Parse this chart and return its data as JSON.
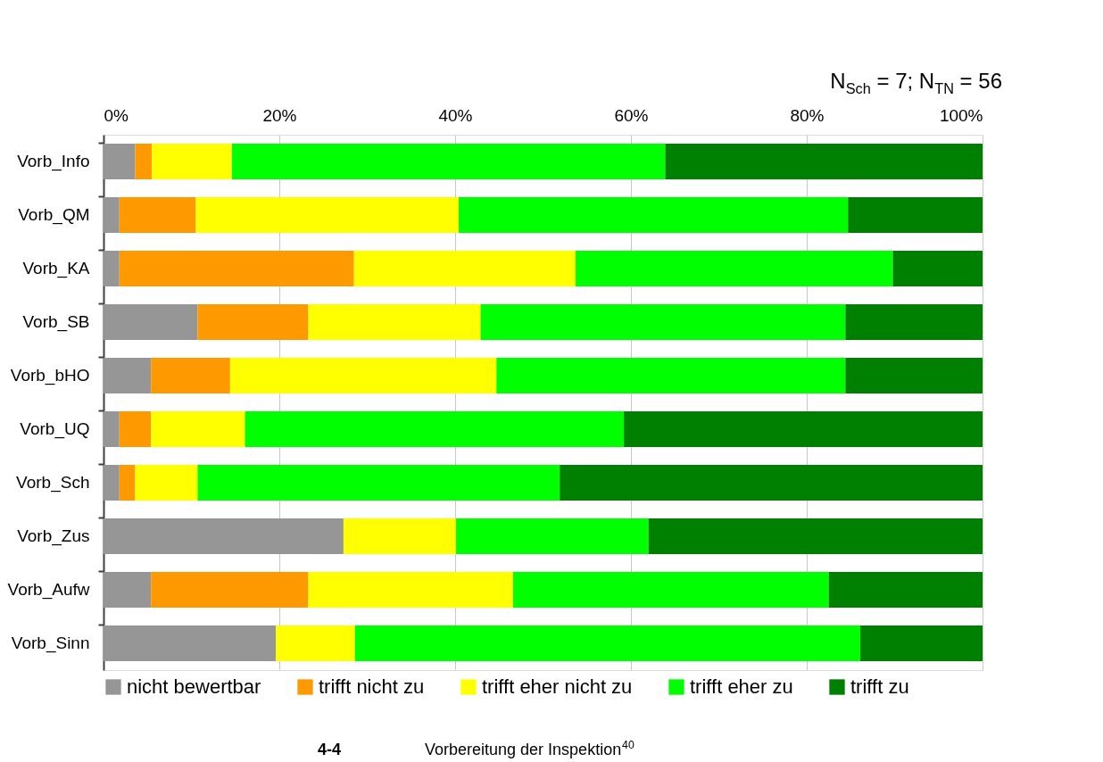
{
  "chart_data": {
    "type": "bar",
    "orientation": "horizontal",
    "stacked": true,
    "categories": [
      "Vorb_Info",
      "Vorb_QM",
      "Vorb_KA",
      "Vorb_SB",
      "Vorb_bHO",
      "Vorb_UQ",
      "Vorb_Sch",
      "Vorb_Zus",
      "Vorb_Aufw",
      "Vorb_Sinn"
    ],
    "series": [
      {
        "name": "nicht bewertbar",
        "color": "#969696",
        "values": [
          3.6,
          1.8,
          1.8,
          10.7,
          5.4,
          1.8,
          1.8,
          27.3,
          5.4,
          19.6
        ]
      },
      {
        "name": "trifft nicht zu",
        "color": "#ff9900",
        "values": [
          1.9,
          8.7,
          26.7,
          12.6,
          9.0,
          3.6,
          1.8,
          0,
          17.9,
          0
        ]
      },
      {
        "name": "trifft eher nicht zu",
        "color": "#ffff00",
        "values": [
          9.1,
          29.9,
          25.2,
          19.6,
          30.3,
          10.7,
          7.1,
          12.8,
          23.3,
          9.0
        ]
      },
      {
        "name": "trifft eher zu",
        "color": "#00ff00",
        "values": [
          49.3,
          44.3,
          36.1,
          41.5,
          39.7,
          43.1,
          41.2,
          21.9,
          35.9,
          57.5
        ]
      },
      {
        "name": "trifft zu",
        "color": "#008000",
        "values": [
          36.1,
          15.3,
          10.2,
          15.6,
          15.6,
          40.8,
          48.1,
          38.0,
          17.5,
          13.9
        ]
      }
    ],
    "xlim": [
      0,
      100
    ],
    "xticks": [
      {
        "value": 0,
        "label": "0%"
      },
      {
        "value": 20,
        "label": "20%"
      },
      {
        "value": 40,
        "label": "40%"
      },
      {
        "value": 60,
        "label": "60%"
      },
      {
        "value": 80,
        "label": "80%"
      },
      {
        "value": 100,
        "label": "100%"
      }
    ],
    "grid": "x",
    "legend": "bottom",
    "annotations": [
      "N$_{Sch}$ = 7; N$_{TN}$ = 56",
      "4-4",
      "Vorbereitung der Inspektion$^{40}$"
    ]
  }
}
